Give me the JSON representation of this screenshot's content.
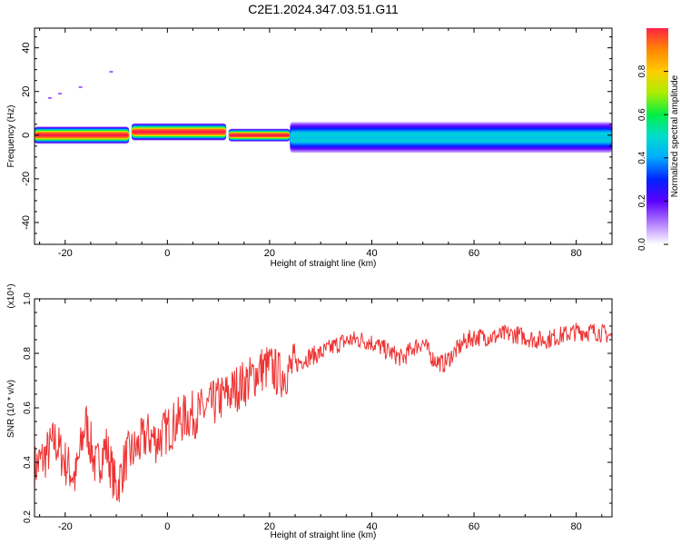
{
  "page_title": "C2E1.2024.347.03.51.G11",
  "colors": {
    "snr_line": "#ee3333",
    "track_center": "#ff2244",
    "frame": "#000000",
    "colormap": [
      "#ffffff",
      "#b07cff",
      "#5b00ff",
      "#0022ff",
      "#00aaff",
      "#00ddcc",
      "#00ee44",
      "#aaee00",
      "#ffcc00",
      "#ff8800",
      "#ff2244"
    ]
  },
  "chart_data": [
    {
      "type": "heatmap",
      "title": "C2E1.2024.347.03.51.G11",
      "xlabel": "Height of straight line (km)",
      "ylabel": "Frequency (Hz)",
      "xlim": [
        -26,
        87
      ],
      "ylim": [
        -50,
        49
      ],
      "x_ticks": [
        -20,
        0,
        20,
        40,
        60,
        80
      ],
      "y_ticks": [
        -40,
        -20,
        0,
        20,
        40
      ],
      "colorbar": {
        "label": "Normalized spectral amplitude",
        "range": [
          0,
          1
        ],
        "ticks": [
          0.0,
          0.2,
          0.4,
          0.6,
          0.8
        ]
      },
      "track_segments": [
        {
          "x0": -26,
          "x1": -7.5,
          "freq": 0,
          "halfwidth": 2,
          "peak": 1.0
        },
        {
          "x0": -7,
          "x1": 11.5,
          "freq": 1.5,
          "halfwidth": 2,
          "peak": 1.0
        },
        {
          "x0": 12,
          "x1": 24,
          "freq": 0,
          "halfwidth": 1.5,
          "peak": 1.0
        },
        {
          "x0": 24,
          "x1": 87,
          "freq": -1,
          "halfwidth": 3.5,
          "peak": 0.45
        }
      ],
      "scattered_points": [
        {
          "x": -23,
          "freq": 17
        },
        {
          "x": -21,
          "freq": 19
        },
        {
          "x": -17,
          "freq": 22
        },
        {
          "x": -11,
          "freq": 29
        }
      ]
    },
    {
      "type": "line",
      "xlabel": "Height of straight line (km)",
      "ylabel": "SNR (10 * v/v)",
      "y_multiplier": "(x10⁴)",
      "xlim": [
        -26,
        87
      ],
      "ylim": [
        0.2,
        1.0
      ],
      "x_ticks": [
        -20,
        0,
        20,
        40,
        60,
        80
      ],
      "y_ticks": [
        0.2,
        0.4,
        0.6,
        0.8,
        1.0
      ],
      "series": [
        {
          "x": [
            -26,
            -24,
            -22,
            -20,
            -18,
            -16,
            -14,
            -12,
            -10,
            -8,
            -6,
            -4,
            -2,
            0,
            2,
            4,
            6,
            8,
            10,
            12,
            14,
            16,
            18,
            20,
            22,
            24,
            26,
            28,
            30,
            32,
            34,
            36,
            38,
            40,
            42,
            44,
            46,
            48,
            50,
            52,
            54,
            56,
            58,
            60,
            62,
            64,
            66,
            68,
            70,
            72,
            74,
            76,
            78,
            80,
            82,
            84,
            86,
            87
          ],
          "y": [
            0.38,
            0.42,
            0.48,
            0.4,
            0.34,
            0.55,
            0.38,
            0.46,
            0.3,
            0.42,
            0.45,
            0.5,
            0.48,
            0.52,
            0.55,
            0.57,
            0.58,
            0.6,
            0.63,
            0.65,
            0.68,
            0.7,
            0.74,
            0.75,
            0.72,
            0.74,
            0.77,
            0.79,
            0.8,
            0.82,
            0.84,
            0.85,
            0.85,
            0.84,
            0.82,
            0.8,
            0.78,
            0.82,
            0.84,
            0.78,
            0.76,
            0.8,
            0.84,
            0.86,
            0.86,
            0.86,
            0.87,
            0.87,
            0.86,
            0.85,
            0.85,
            0.86,
            0.87,
            0.88,
            0.88,
            0.88,
            0.87,
            0.86
          ]
        }
      ]
    }
  ]
}
